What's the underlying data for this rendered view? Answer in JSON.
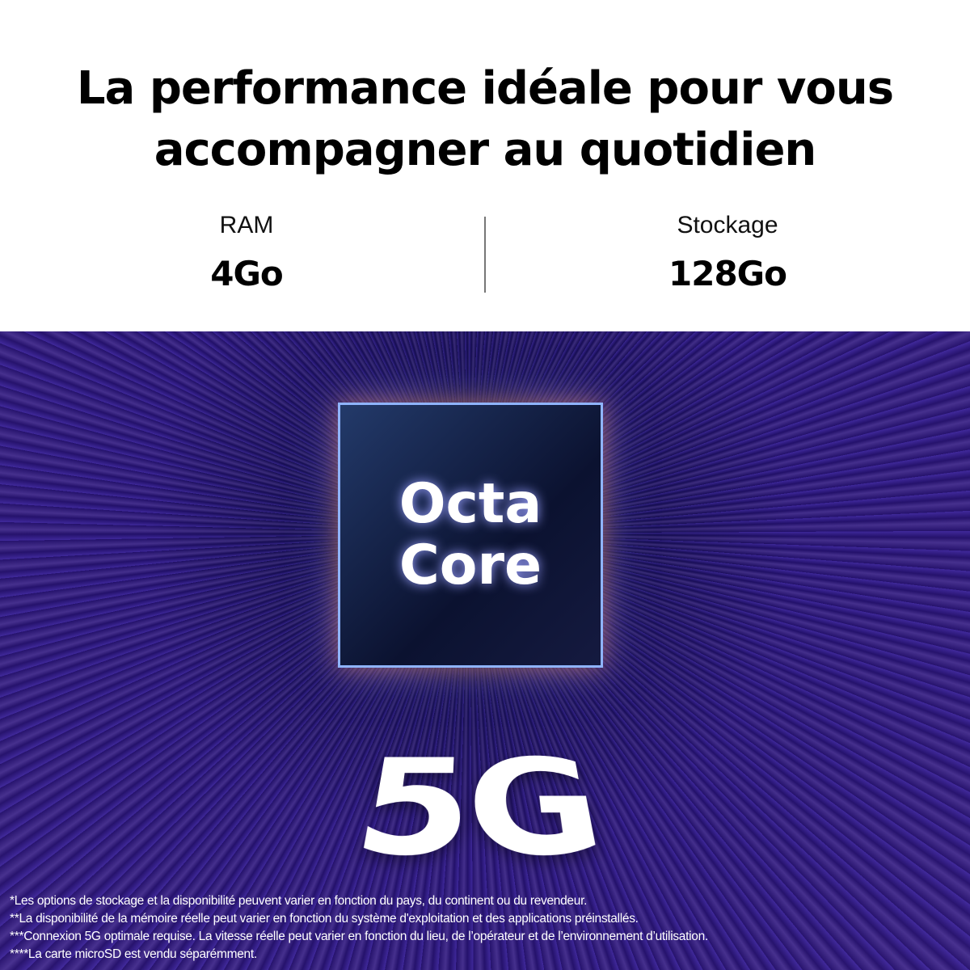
{
  "headline": {
    "line1": "La performance idéale pour vous",
    "line2": "accompagner au quotidien"
  },
  "specs": [
    {
      "label": "RAM",
      "value": "4Go"
    },
    {
      "label": "Stockage",
      "value": "128Go"
    }
  ],
  "chip": {
    "line1": "Octa",
    "line2": "Core"
  },
  "network": "5G",
  "footnotes": [
    "*Les options de stockage et la disponibilité peuvent varier en fonction du pays, du continent ou du revendeur.",
    "**La disponibilité de la mémoire réelle peut varier en fonction du système d'exploitation et des applications préinstallés.",
    "***Connexion 5G optimale requise. La vitesse réelle peut varier en fonction du lieu, de l’opérateur et de l’environnement d’utilisation.",
    "****La carte microSD est vendu séparémment."
  ],
  "colors": {
    "background_dark": "#1a0b55",
    "ray": "#785aff",
    "chip_border": "#8fb4ff"
  }
}
